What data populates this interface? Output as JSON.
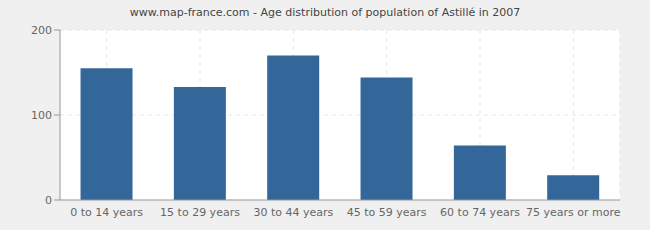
{
  "chart_data": {
    "type": "bar",
    "title": "www.map-france.com - Age distribution of population of Astillé in 2007",
    "categories": [
      "0 to 14 years",
      "15 to 29 years",
      "30 to 44 years",
      "45 to 59 years",
      "60 to 74 years",
      "75 years or more"
    ],
    "values": [
      155,
      133,
      170,
      144,
      64,
      29
    ],
    "color": "#336699",
    "ylim": [
      0,
      200
    ],
    "yticks": [
      0,
      100,
      200
    ],
    "grid": true
  }
}
